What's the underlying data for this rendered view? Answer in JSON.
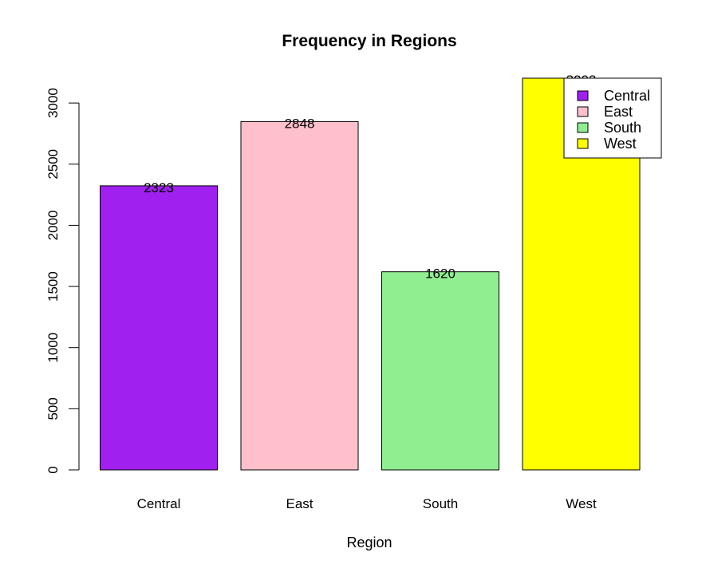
{
  "chart_data": {
    "type": "bar",
    "title": "Frequency in Regions",
    "xlabel": "Region",
    "ylabel": "",
    "categories": [
      "Central",
      "East",
      "South",
      "West"
    ],
    "values": [
      2323,
      2848,
      1620,
      3203
    ],
    "colors": [
      "#a020f0",
      "#ffc0cb",
      "#90ee90",
      "#ffff00"
    ],
    "data_labels": [
      "2323",
      "2848",
      "1620",
      "3203"
    ],
    "ylim": [
      0,
      3203
    ],
    "yticks": [
      0,
      500,
      1000,
      1500,
      2000,
      2500,
      3000
    ],
    "grid": false,
    "legend": {
      "placement": "top-right",
      "entries": [
        "Central",
        "East",
        "South",
        "West"
      ]
    }
  }
}
